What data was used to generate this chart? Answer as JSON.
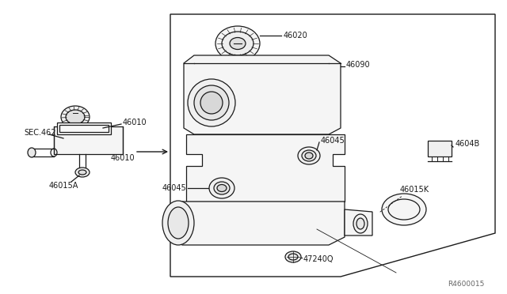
{
  "bg_color": "#ffffff",
  "lc": "#1a1a1a",
  "lw": 0.9,
  "fs": 7.0,
  "watermark": "R4600015",
  "labels": {
    "SEC462": "SEC.462",
    "46010a": "46010",
    "46010b": "46010",
    "46015A": "46015A",
    "46020": "46020",
    "46090": "46090",
    "46045a": "46045",
    "46045b": "46045",
    "4604B": "4604B",
    "46015K": "46015K",
    "47240Q": "47240Q"
  },
  "fig_width": 6.4,
  "fig_height": 3.72,
  "dpi": 100
}
